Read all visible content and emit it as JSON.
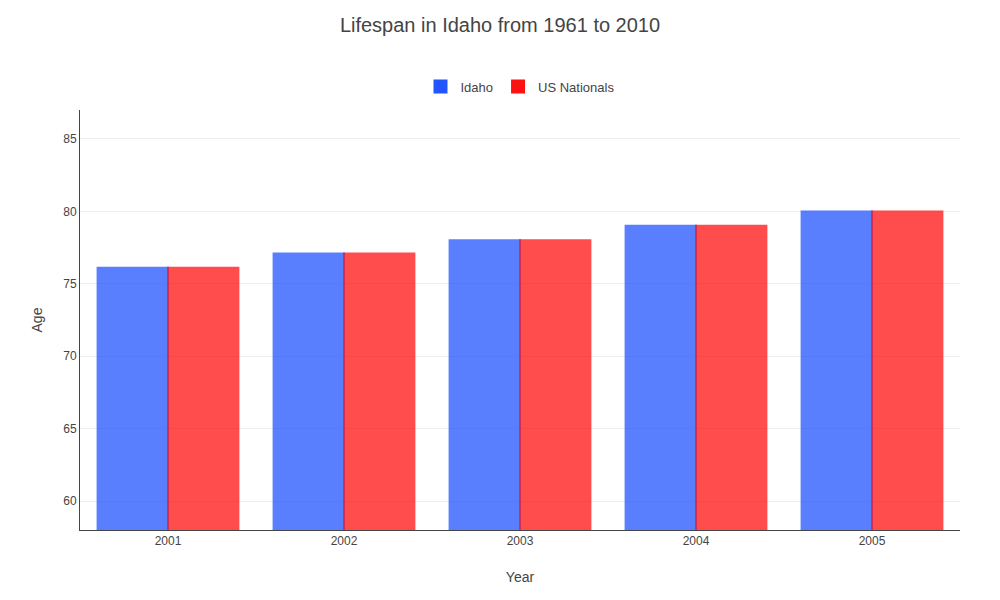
{
  "chart_data": {
    "type": "bar",
    "title": "Lifespan in Idaho from 1961 to 2010",
    "xlabel": "Year",
    "ylabel": "Age",
    "categories": [
      "2001",
      "2002",
      "2003",
      "2004",
      "2005"
    ],
    "series": [
      {
        "name": "Idaho",
        "color": "#2255ff",
        "values": [
          76.1,
          77.1,
          78.0,
          79.0,
          80.0
        ]
      },
      {
        "name": "US Nationals",
        "color": "#ff1111",
        "values": [
          76.1,
          77.1,
          78.0,
          79.0,
          80.0
        ]
      }
    ],
    "ylim": [
      58,
      87
    ],
    "yticks": [
      60,
      65,
      70,
      75,
      80,
      85
    ],
    "grid": true,
    "legend": "top"
  }
}
